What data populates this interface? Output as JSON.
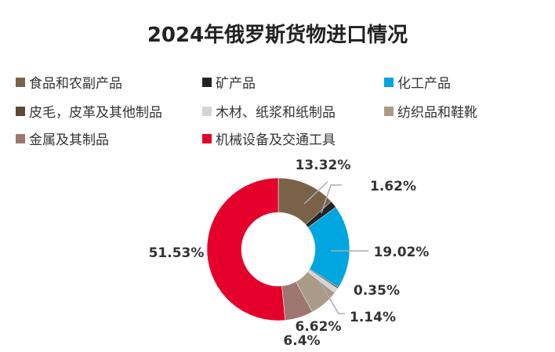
{
  "chart_data": {
    "type": "pie",
    "title": "2024年俄罗斯货物进口情况",
    "legend_position": "top",
    "categories": [
      "食品和农副产品",
      "矿产品",
      "化工产品",
      "皮毛，皮革及其他制品",
      "木材、纸浆和纸制品",
      "纺织品和鞋靴",
      "金属及其制品",
      "机械设备及交通工具"
    ],
    "values": [
      13.32,
      1.62,
      19.02,
      0.35,
      1.14,
      6.62,
      6.4,
      51.53
    ],
    "labels": [
      "13.32%",
      "1.62%",
      "19.02%",
      "0.35%",
      "1.14%",
      "6.62%",
      "6.4%",
      "51.53%"
    ],
    "colors": [
      "#7a6249",
      "#222428",
      "#00a6df",
      "#5c4a36",
      "#d4d4d4",
      "#ab9a85",
      "#9e7672",
      "#e4002b"
    ]
  }
}
